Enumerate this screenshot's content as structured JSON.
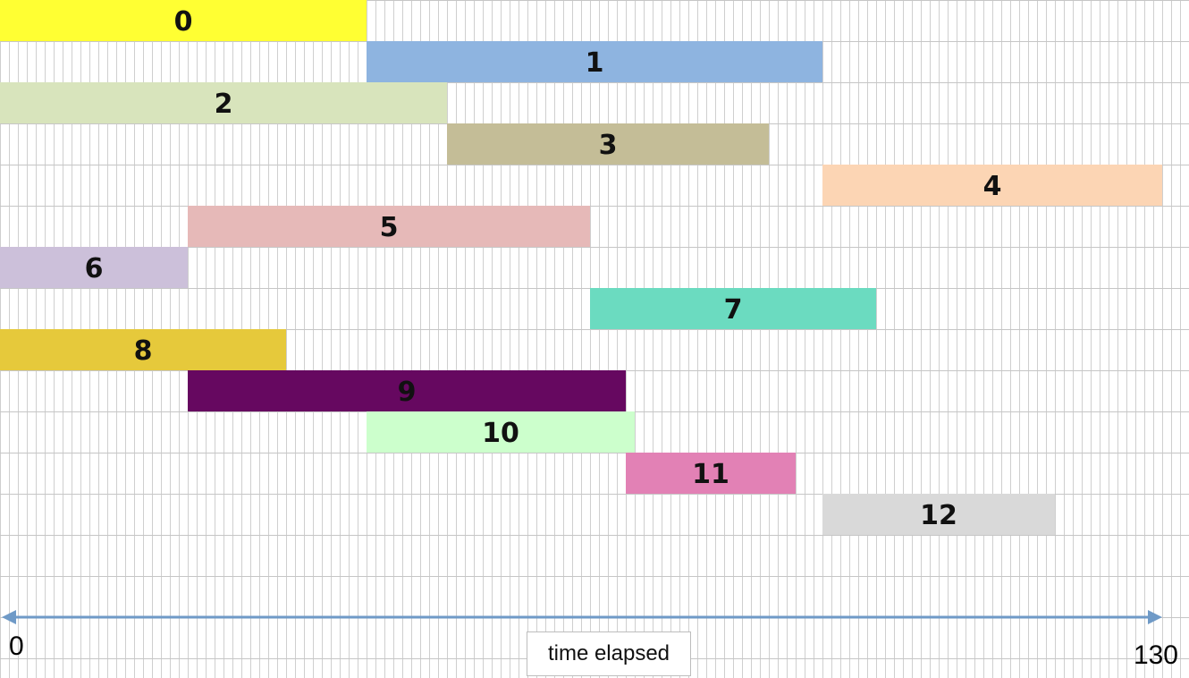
{
  "chart_data": {
    "type": "bar",
    "orientation": "horizontal",
    "subtype": "gantt",
    "title": "",
    "xlabel": "time elapsed",
    "ylabel": "",
    "xlim": [
      0,
      130
    ],
    "x_ticks": [
      "0",
      "130"
    ],
    "grid": true,
    "tasks": [
      {
        "label": "0",
        "start": 0,
        "end": 41,
        "color": "#FFFF33"
      },
      {
        "label": "1",
        "start": 41,
        "end": 92,
        "color": "#8EB4E0"
      },
      {
        "label": "2",
        "start": 0,
        "end": 50,
        "color": "#D8E4BC"
      },
      {
        "label": "3",
        "start": 50,
        "end": 86,
        "color": "#C4BD97"
      },
      {
        "label": "4",
        "start": 92,
        "end": 130,
        "color": "#FCD5B4"
      },
      {
        "label": "5",
        "start": 21,
        "end": 66,
        "color": "#E6B9B8"
      },
      {
        "label": "6",
        "start": 0,
        "end": 21,
        "color": "#CCC0DA"
      },
      {
        "label": "7",
        "start": 66,
        "end": 98,
        "color": "#6BDBC0"
      },
      {
        "label": "8",
        "start": 0,
        "end": 32,
        "color": "#E6C93B"
      },
      {
        "label": "9",
        "start": 21,
        "end": 70,
        "color": "#660860"
      },
      {
        "label": "10",
        "start": 41,
        "end": 71,
        "color": "#CCFFCC"
      },
      {
        "label": "11",
        "start": 70,
        "end": 89,
        "color": "#E281B5"
      },
      {
        "label": "12",
        "start": 92,
        "end": 118,
        "color": "#D9D9D9"
      }
    ]
  }
}
